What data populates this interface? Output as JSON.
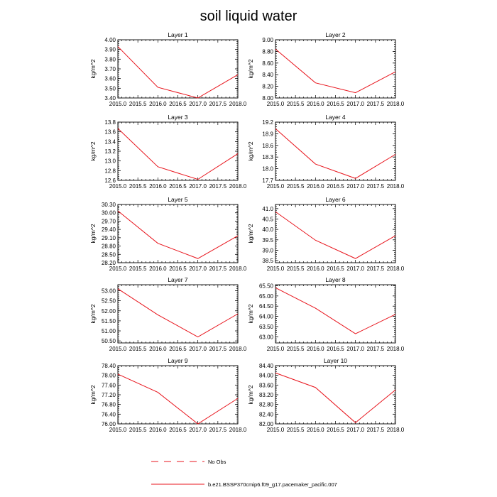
{
  "figure": {
    "title": "soil liquid water"
  },
  "legend": [
    {
      "label": "No Obs",
      "style": "dashed",
      "color": "#e8141c"
    },
    {
      "label": "b.e21.BSSP370cmip6.f09_g17.pacemaker_pacific.007",
      "style": "solid",
      "color": "#e8141c"
    }
  ],
  "colors": {
    "series": "#e8141c",
    "axis": "#000000"
  },
  "chart_data": [
    {
      "type": "line",
      "title": "Layer 1",
      "ylabel": "kg/m^2",
      "x": [
        2015,
        2016,
        2017,
        2018
      ],
      "values": [
        3.93,
        3.51,
        3.4,
        3.64
      ],
      "xlim": [
        2015,
        2018
      ],
      "ylim": [
        3.4,
        4.0
      ],
      "yticks": [
        "3.40",
        "3.50",
        "3.60",
        "3.70",
        "3.80",
        "3.90",
        "4.00"
      ],
      "xticks": [
        "2015.0",
        "2015.5",
        "2016.0",
        "2016.5",
        "2017.0",
        "2017.5",
        "2018.0"
      ],
      "series_name": "b.e21.BSSP370cmip6.f09_g17.pacemaker_pacific.007"
    },
    {
      "type": "line",
      "title": "Layer 2",
      "ylabel": "kg/m^2",
      "x": [
        2015,
        2016,
        2017,
        2018
      ],
      "values": [
        8.84,
        8.26,
        8.09,
        8.45
      ],
      "xlim": [
        2015,
        2018
      ],
      "ylim": [
        8.0,
        9.0
      ],
      "yticks": [
        "8.00",
        "8.20",
        "8.40",
        "8.60",
        "8.80",
        "9.00"
      ],
      "xticks": [
        "2015.0",
        "2015.5",
        "2016.0",
        "2016.5",
        "2017.0",
        "2017.5",
        "2018.0"
      ],
      "series_name": "b.e21.BSSP370cmip6.f09_g17.pacemaker_pacific.007"
    },
    {
      "type": "line",
      "title": "Layer 3",
      "ylabel": "kg/m^2",
      "x": [
        2015,
        2016,
        2017,
        2018
      ],
      "values": [
        13.67,
        12.88,
        12.62,
        13.15
      ],
      "xlim": [
        2015,
        2018
      ],
      "ylim": [
        12.6,
        13.8
      ],
      "yticks": [
        "12.6",
        "12.8",
        "13.0",
        "13.2",
        "13.4",
        "13.6",
        "13.8"
      ],
      "xticks": [
        "2015.0",
        "2015.5",
        "2016.0",
        "2016.5",
        "2017.0",
        "2017.5",
        "2018.0"
      ],
      "series_name": "b.e21.BSSP370cmip6.f09_g17.pacemaker_pacific.007"
    },
    {
      "type": "line",
      "title": "Layer 4",
      "ylabel": "kg/m^2",
      "x": [
        2015,
        2016,
        2017,
        2018
      ],
      "values": [
        19.03,
        18.12,
        17.75,
        18.37
      ],
      "xlim": [
        2015,
        2018
      ],
      "ylim": [
        17.7,
        19.2
      ],
      "yticks": [
        "17.7",
        "18.0",
        "18.3",
        "18.6",
        "18.9",
        "19.2"
      ],
      "xticks": [
        "2015.0",
        "2015.5",
        "2016.0",
        "2016.5",
        "2017.0",
        "2017.5",
        "2018.0"
      ],
      "series_name": "b.e21.BSSP370cmip6.f09_g17.pacemaker_pacific.007"
    },
    {
      "type": "line",
      "title": "Layer 5",
      "ylabel": "kg/m^2",
      "x": [
        2015,
        2016,
        2017,
        2018
      ],
      "values": [
        30.07,
        28.9,
        28.35,
        29.17
      ],
      "xlim": [
        2015,
        2018
      ],
      "ylim": [
        28.2,
        30.3
      ],
      "yticks": [
        "28.20",
        "28.50",
        "28.80",
        "29.10",
        "29.40",
        "29.70",
        "30.00",
        "30.30"
      ],
      "xticks": [
        "2015.0",
        "2015.5",
        "2016.0",
        "2016.5",
        "2017.0",
        "2017.5",
        "2018.0"
      ],
      "series_name": "b.e21.BSSP370cmip6.f09_g17.pacemaker_pacific.007"
    },
    {
      "type": "line",
      "title": "Layer 6",
      "ylabel": "kg/m^2",
      "x": [
        2015,
        2016,
        2017,
        2018
      ],
      "values": [
        40.85,
        39.48,
        38.6,
        39.7
      ],
      "xlim": [
        2015,
        2018
      ],
      "ylim": [
        38.4,
        41.2
      ],
      "yticks": [
        "38.5",
        "39.0",
        "39.5",
        "40.0",
        "40.5",
        "41.0"
      ],
      "xticks": [
        "2015.0",
        "2015.5",
        "2016.0",
        "2016.5",
        "2017.0",
        "2017.5",
        "2018.0"
      ],
      "series_name": "b.e21.BSSP370cmip6.f09_g17.pacemaker_pacific.007"
    },
    {
      "type": "line",
      "title": "Layer 7",
      "ylabel": "kg/m^2",
      "x": [
        2015,
        2016,
        2017,
        2018
      ],
      "values": [
        53.1,
        51.8,
        50.7,
        51.85
      ],
      "xlim": [
        2015,
        2018
      ],
      "ylim": [
        50.4,
        53.3
      ],
      "yticks": [
        "50.50",
        "51.00",
        "51.50",
        "52.00",
        "52.50",
        "53.00"
      ],
      "xticks": [
        "2015.0",
        "2015.5",
        "2016.0",
        "2016.5",
        "2017.0",
        "2017.5",
        "2018.0"
      ],
      "series_name": "b.e21.BSSP370cmip6.f09_g17.pacemaker_pacific.007"
    },
    {
      "type": "line",
      "title": "Layer 8",
      "ylabel": "kg/m^2",
      "x": [
        2015,
        2016,
        2017,
        2018
      ],
      "values": [
        65.4,
        64.4,
        63.15,
        64.1
      ],
      "xlim": [
        2015,
        2018
      ],
      "ylim": [
        62.7,
        65.55
      ],
      "yticks": [
        "63.00",
        "63.50",
        "64.00",
        "64.50",
        "65.00",
        "65.50"
      ],
      "xticks": [
        "2015.0",
        "2015.5",
        "2016.0",
        "2016.5",
        "2017.0",
        "2017.5",
        "2018.0"
      ],
      "series_name": "b.e21.BSSP370cmip6.f09_g17.pacemaker_pacific.007"
    },
    {
      "type": "line",
      "title": "Layer 9",
      "ylabel": "kg/m^2",
      "x": [
        2015,
        2016,
        2017,
        2018
      ],
      "values": [
        78.05,
        77.3,
        76.0,
        77.05
      ],
      "xlim": [
        2015,
        2018
      ],
      "ylim": [
        76.0,
        78.4
      ],
      "yticks": [
        "76.00",
        "76.40",
        "76.80",
        "77.20",
        "77.60",
        "78.00",
        "78.40"
      ],
      "xticks": [
        "2015.0",
        "2015.5",
        "2016.0",
        "2016.5",
        "2017.0",
        "2017.5",
        "2018.0"
      ],
      "series_name": "b.e21.BSSP370cmip6.f09_g17.pacemaker_pacific.007"
    },
    {
      "type": "line",
      "title": "Layer 10",
      "ylabel": "kg/m^2",
      "x": [
        2015,
        2016,
        2017,
        2018
      ],
      "values": [
        84.1,
        83.5,
        82.05,
        83.4
      ],
      "xlim": [
        2015,
        2018
      ],
      "ylim": [
        82.0,
        84.4
      ],
      "yticks": [
        "82.00",
        "82.40",
        "82.80",
        "83.20",
        "83.60",
        "84.00",
        "84.40"
      ],
      "xticks": [
        "2015.0",
        "2015.5",
        "2016.0",
        "2016.5",
        "2017.0",
        "2017.5",
        "2018.0"
      ],
      "series_name": "b.e21.BSSP370cmip6.f09_g17.pacemaker_pacific.007"
    }
  ]
}
